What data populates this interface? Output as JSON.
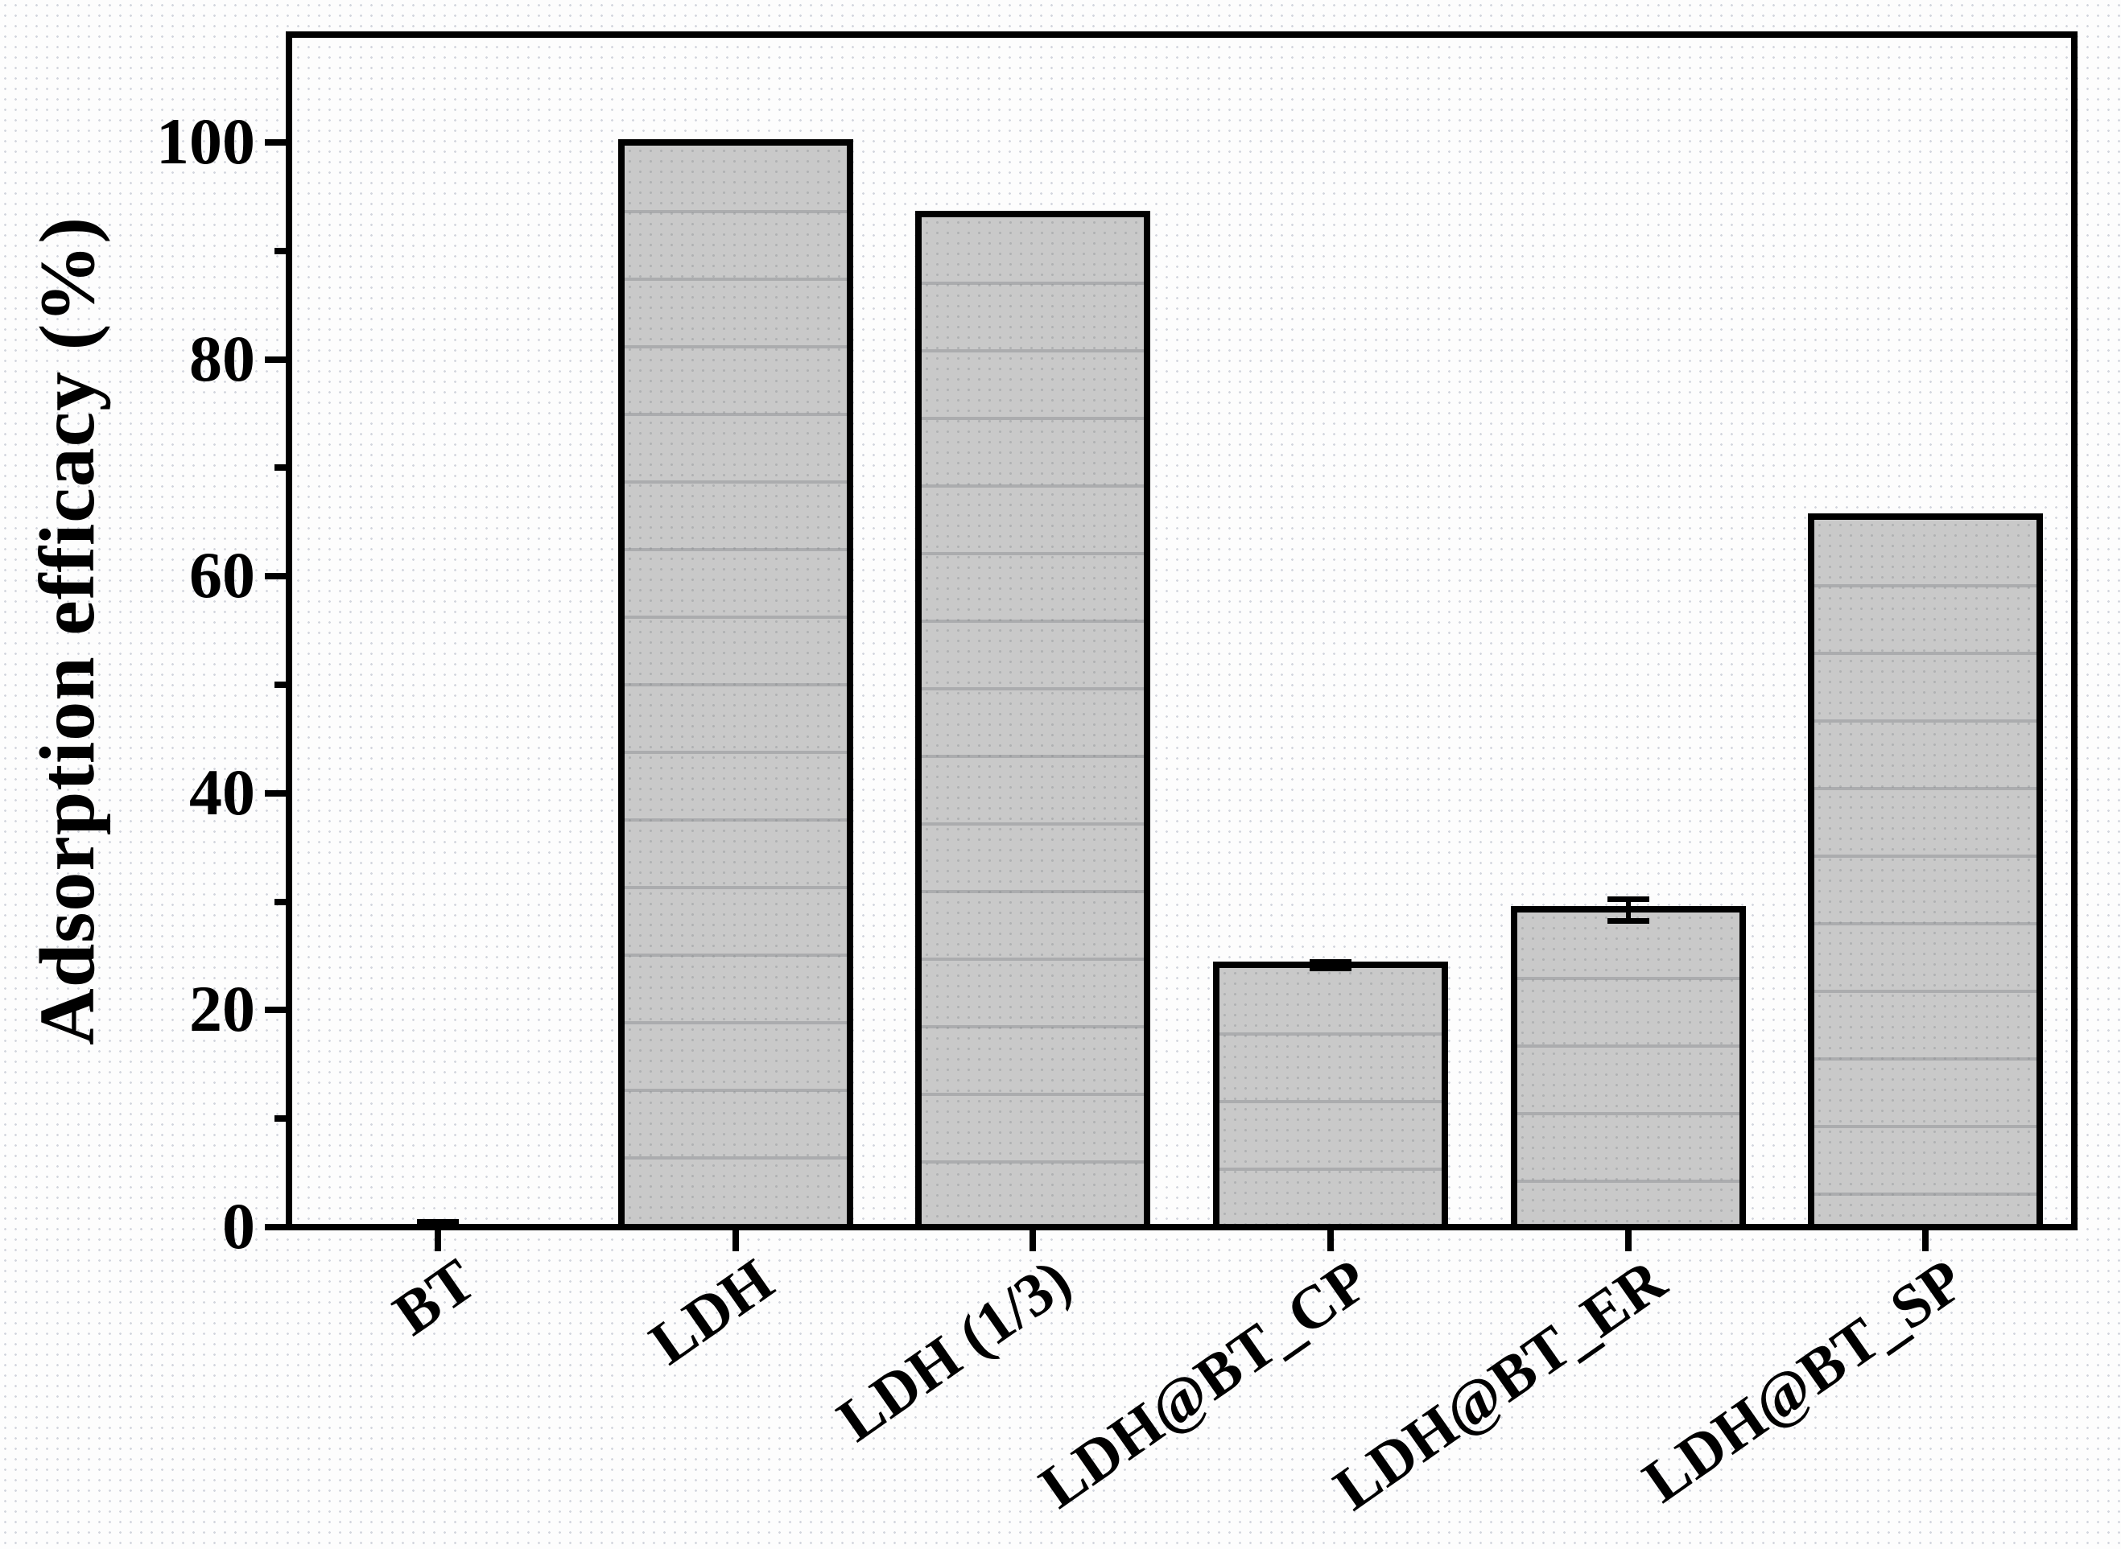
{
  "figure": {
    "background_color": "#fdfdfd",
    "dot_pattern_color": "#b8bec9"
  },
  "chart_data": {
    "type": "bar",
    "title": "",
    "xlabel": "",
    "ylabel": "Adsorption efficacy (%)",
    "categories": [
      "BT",
      "LDH",
      "LDH (1/3)",
      "LDH@BT_CP",
      "LDH@BT_ER",
      "LDH@BT_SP"
    ],
    "values": [
      0.2,
      100.0,
      93.4,
      24.2,
      29.3,
      65.5
    ],
    "errors": [
      0.3,
      0,
      0,
      0.3,
      1.0,
      0
    ],
    "ylim": [
      0,
      110
    ],
    "yticks": [
      0,
      20,
      40,
      60,
      80,
      100
    ],
    "minor_yticks": [
      10,
      30,
      50,
      70,
      90
    ],
    "grid": false,
    "legend": false,
    "bar_fill": "#c9c9c9",
    "bar_border": "#000000",
    "axis_color": "#000000",
    "label_rotation_deg": -35
  }
}
